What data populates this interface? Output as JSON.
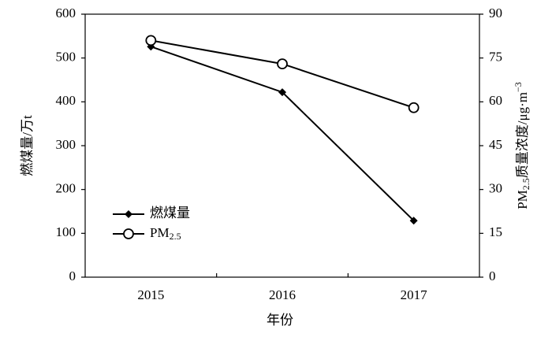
{
  "chart_data": {
    "type": "line",
    "categories": [
      "2015",
      "2016",
      "2017"
    ],
    "x_label": "年份",
    "y_label": "燃煤量/万t",
    "y2_label": {
      "main": "PM",
      "sub": "2.5",
      "rest": "质量浓度/μg·m",
      "sup": "−3"
    },
    "ylim": [
      0,
      600
    ],
    "yticks": [
      0,
      100,
      200,
      300,
      400,
      500,
      600
    ],
    "y2lim": [
      0,
      90
    ],
    "y2ticks": [
      0,
      15,
      30,
      45,
      60,
      75,
      90
    ],
    "series": [
      {
        "name": "燃煤量",
        "color": "#000000",
        "marker": "diamond",
        "values": [
          526,
          422,
          129
        ]
      },
      {
        "name": "PM",
        "name_sub": "2.5",
        "color": "#000000",
        "marker": "open-circle",
        "axis": "y2",
        "values": [
          81,
          73,
          58
        ]
      }
    ],
    "legend": "lower-left"
  }
}
